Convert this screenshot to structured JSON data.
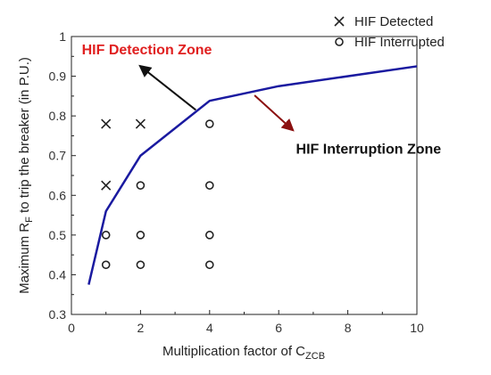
{
  "chart_data": {
    "type": "scatter",
    "xlabel": "Multiplication factor of C",
    "xlabel_sub": "ZCB",
    "ylabel": "Maximum R",
    "ylabel_sub": "F",
    "ylabel_rest": " to trip the breaker (in P.U.)",
    "xlim": [
      0,
      10
    ],
    "ylim": [
      0.3,
      1.0
    ],
    "x_ticks": [
      0,
      2,
      4,
      6,
      8,
      10
    ],
    "y_ticks": [
      0.3,
      0.4,
      0.5,
      0.6,
      0.7,
      0.8,
      0.9,
      1.0
    ],
    "y_tick_labels": [
      "0.3",
      "0.4",
      "0.5",
      "0.6",
      "0.7",
      "0.8",
      "0.9",
      "1"
    ],
    "grid": false,
    "legend_position": "top-right",
    "series": [
      {
        "name": "HIF Detected",
        "marker": "x",
        "color": "#222222",
        "points": [
          {
            "x": 1,
            "y": 0.78
          },
          {
            "x": 2,
            "y": 0.78
          },
          {
            "x": 1,
            "y": 0.625
          }
        ]
      },
      {
        "name": "HIF Interrupted",
        "marker": "o",
        "color": "#222222",
        "points": [
          {
            "x": 4,
            "y": 0.78
          },
          {
            "x": 2,
            "y": 0.625
          },
          {
            "x": 4,
            "y": 0.625
          },
          {
            "x": 1,
            "y": 0.5
          },
          {
            "x": 2,
            "y": 0.5
          },
          {
            "x": 4,
            "y": 0.5
          },
          {
            "x": 1,
            "y": 0.425
          },
          {
            "x": 2,
            "y": 0.425
          },
          {
            "x": 4,
            "y": 0.425
          }
        ]
      },
      {
        "marker": "line",
        "color": "#1a1aa0",
        "points": [
          {
            "x": 0.5,
            "y": 0.375
          },
          {
            "x": 1,
            "y": 0.56
          },
          {
            "x": 2,
            "y": 0.7
          },
          {
            "x": 4,
            "y": 0.838
          },
          {
            "x": 6,
            "y": 0.875
          },
          {
            "x": 10,
            "y": 0.925
          }
        ]
      }
    ],
    "annotations": [
      {
        "text": "HIF Detection Zone",
        "color": "#e02020",
        "arrow_color": "#111111",
        "label_at": {
          "x": 0.3,
          "y": 0.955
        },
        "arrow_from": {
          "x": 3.6,
          "y": 0.815
        },
        "arrow_to": {
          "x": 2.0,
          "y": 0.925
        }
      },
      {
        "text": "HIF Interruption Zone",
        "color": "#111111",
        "arrow_color": "#8b1010",
        "label_at": {
          "x": 6.5,
          "y": 0.705
        },
        "arrow_from": {
          "x": 5.3,
          "y": 0.852
        },
        "arrow_to": {
          "x": 6.4,
          "y": 0.765
        }
      }
    ]
  }
}
